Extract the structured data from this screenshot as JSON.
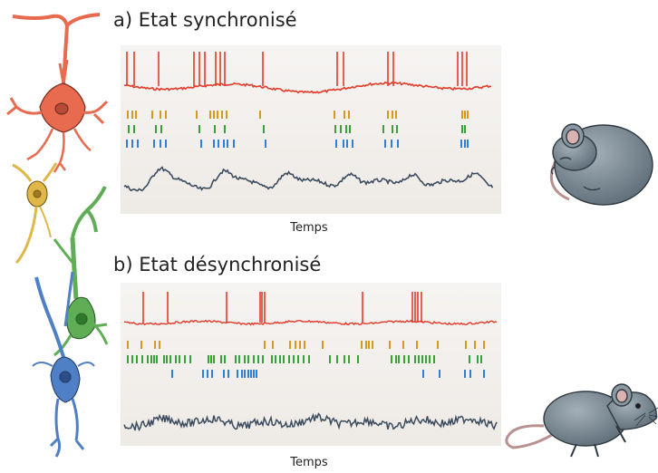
{
  "panels": [
    {
      "title": "a) Etat synchronisé",
      "xlabel": "Temps"
    },
    {
      "title": "b) Etat désynchronisé",
      "xlabel": "Temps"
    }
  ],
  "colors": {
    "spike_trace": "#e23b2a",
    "raster_orange": "#d49a1e",
    "raster_green": "#3aa13a",
    "raster_blue": "#2f7fd6",
    "lfp_trace": "#3b4c5e",
    "pyramidal_neuron": "#e86a4f",
    "interneuron": "#e0b84a",
    "green_neuron": "#5fae55",
    "blue_neuron": "#4f7fc4",
    "mouse_body": "#7d8c97"
  },
  "icons": [
    "pyramidal-neuron-icon",
    "interneuron-icon",
    "green-neuron-icon",
    "blue-neuron-icon",
    "sleeping-mouse-icon",
    "awake-mouse-icon"
  ]
}
